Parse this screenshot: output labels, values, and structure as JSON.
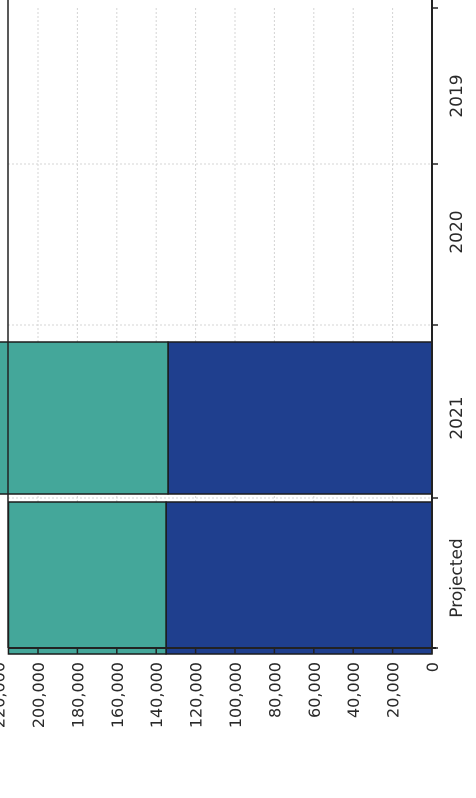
{
  "chart_data": {
    "type": "bar",
    "orientation": "horizontal-stacked",
    "categories": [
      "2019",
      "2020",
      "2021",
      "Projected"
    ],
    "series": [
      {
        "color": "#1f3f8e",
        "values": [
          0,
          0,
          134000,
          135000
        ]
      },
      {
        "color": "#44a79a",
        "values": [
          0,
          0,
          91000,
          80000
        ]
      }
    ],
    "ylim": [
      0,
      230000
    ],
    "tick_values": [
      0,
      20000,
      40000,
      60000,
      80000,
      100000,
      120000,
      140000,
      160000,
      180000,
      200000,
      220000
    ],
    "tick_labels": [
      "0",
      "20,000",
      "40,000",
      "60,000",
      "80,000",
      "100,000",
      "120,000",
      "140,000",
      "160,000",
      "180,000",
      "200,000",
      "220,000"
    ],
    "grid": true
  }
}
